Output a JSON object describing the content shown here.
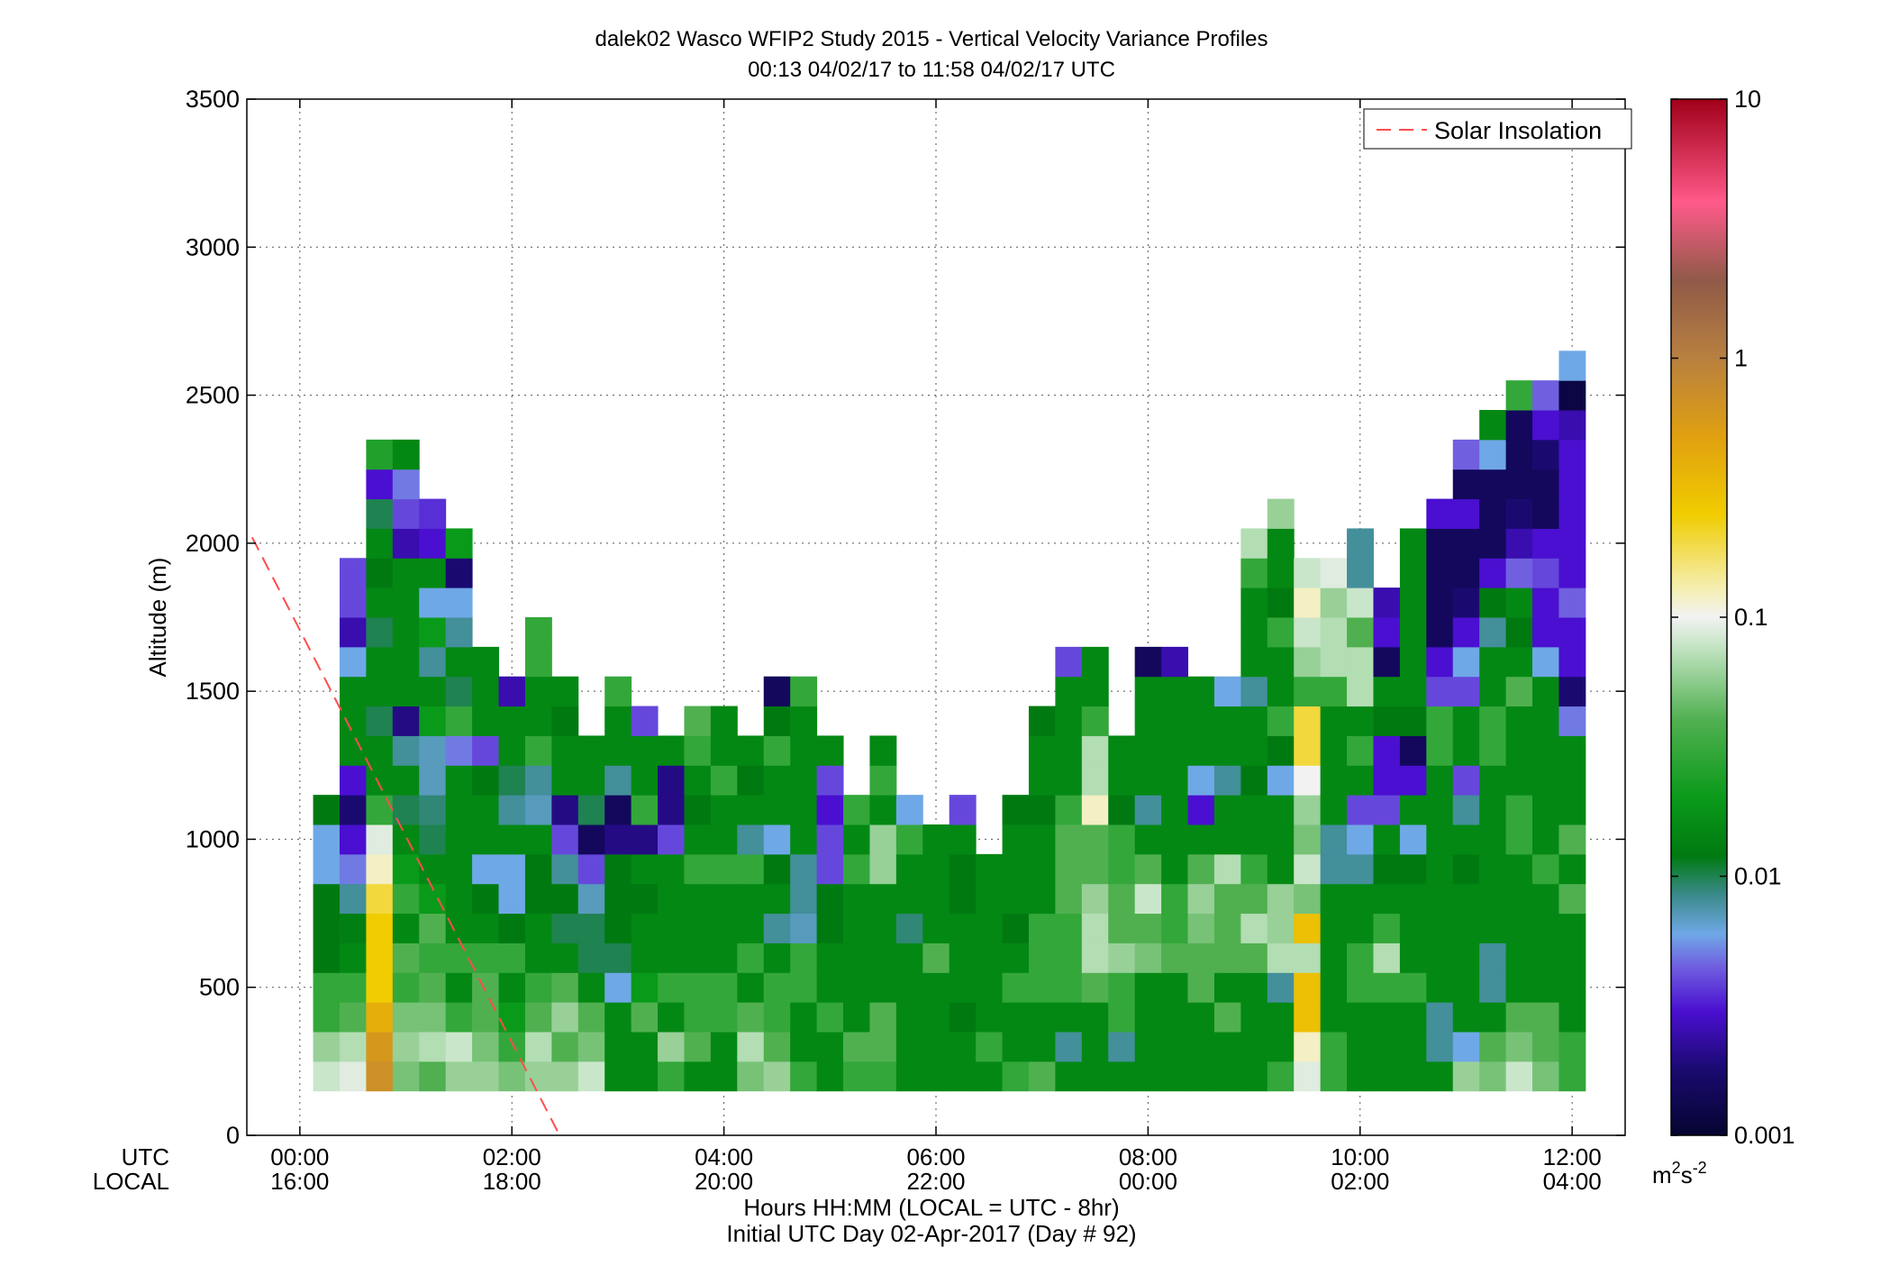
{
  "chart_data": {
    "type": "heatmap",
    "title": "dalek02 Wasco WFIP2 Study 2015 - Vertical Velocity Variance Profiles",
    "subtitle": "00:13 04/02/17 to 11:58 04/02/17  UTC",
    "ylabel": "Altitude (m)",
    "xlabel": "Hours HH:MM  (LOCAL = UTC - 8hr)",
    "xlabel2": "Initial UTC Day 02-Apr-2017 (Day # 92)",
    "utc_row_label": "UTC",
    "local_row_label": "LOCAL",
    "xlim": [
      -0.5,
      12.5
    ],
    "ylim": [
      0,
      3500
    ],
    "grid": true,
    "x_ticks": [
      {
        "x": 0,
        "utc": "00:00",
        "local": "16:00"
      },
      {
        "x": 2,
        "utc": "02:00",
        "local": "18:00"
      },
      {
        "x": 4,
        "utc": "04:00",
        "local": "20:00"
      },
      {
        "x": 6,
        "utc": "06:00",
        "local": "22:00"
      },
      {
        "x": 8,
        "utc": "08:00",
        "local": "00:00"
      },
      {
        "x": 10,
        "utc": "10:00",
        "local": "02:00"
      },
      {
        "x": 12,
        "utc": "12:00",
        "local": "04:00"
      }
    ],
    "y_ticks": [
      "0",
      "500",
      "1000",
      "1500",
      "2000",
      "2500",
      "3000",
      "3500"
    ],
    "legend": {
      "position": "top-right",
      "entries": [
        {
          "label": "Solar Insolation",
          "color": "#ff4d4d",
          "style": "dashed"
        }
      ]
    },
    "solar_insolation_line": {
      "x": [
        -0.45,
        2.45
      ],
      "y": [
        2020,
        0
      ]
    },
    "colorbar": {
      "unit": "m",
      "unit_sup1": "2",
      "unit_mid": "s",
      "unit_sup2": "-2",
      "scale": "log",
      "range": [
        0.001,
        10
      ],
      "tick_labels": [
        "0.001",
        "0.01",
        "0.1",
        "1",
        "10"
      ],
      "tick_values": [
        0.001,
        0.01,
        0.1,
        1,
        10
      ],
      "stops": [
        {
          "v": 0.001,
          "c": "#050530"
        },
        {
          "v": 0.0018,
          "c": "#1a0a70"
        },
        {
          "v": 0.003,
          "c": "#4a0fd0"
        },
        {
          "v": 0.0045,
          "c": "#7060e0"
        },
        {
          "v": 0.006,
          "c": "#6fa8e6"
        },
        {
          "v": 0.0085,
          "c": "#3a8a8a"
        },
        {
          "v": 0.012,
          "c": "#007a10"
        },
        {
          "v": 0.02,
          "c": "#0a9a1a"
        },
        {
          "v": 0.04,
          "c": "#50b050"
        },
        {
          "v": 0.075,
          "c": "#bfe2bf"
        },
        {
          "v": 0.1,
          "c": "#f2f2f2"
        },
        {
          "v": 0.13,
          "c": "#f5eeb0"
        },
        {
          "v": 0.25,
          "c": "#f0cc00"
        },
        {
          "v": 0.5,
          "c": "#e0a010"
        },
        {
          "v": 1.0,
          "c": "#b88040"
        },
        {
          "v": 2.0,
          "c": "#905a48"
        },
        {
          "v": 4.0,
          "c": "#ff5a8a"
        },
        {
          "v": 10.0,
          "c": "#a00018"
        }
      ]
    },
    "grid_spec": {
      "x_start": 0.25,
      "x_step": 0.25,
      "y_start": 200,
      "y_step": 100
    },
    "cells": {
      "0.25": [
        0.08,
        0.06,
        0.03,
        0.03,
        0.012,
        0.012,
        0.012,
        0.006,
        0.006,
        0.012
      ],
      "0.5": [
        0.09,
        0.07,
        0.04,
        0.03,
        0.015,
        0.013,
        0.008,
        0.005,
        0.003,
        0.0018,
        0.003,
        0.015,
        0.015,
        0.015,
        0.006,
        0.0025,
        0.004,
        0.004
      ],
      "0.75": [
        0.7,
        0.6,
        0.4,
        0.25,
        0.25,
        0.25,
        0.2,
        0.12,
        0.09,
        0.03,
        0.015,
        0.015,
        0.01,
        0.015,
        0.015,
        0.01,
        0.015,
        0.012,
        0.015,
        0.01,
        0.003,
        0.025
      ],
      "1.0": [
        0.05,
        0.06,
        0.05,
        0.03,
        0.04,
        0.015,
        0.03,
        0.02,
        0.015,
        0.01,
        0.015,
        0.008,
        0.002,
        0.015,
        0.015,
        0.015,
        0.015,
        0.015,
        0.0025,
        0.004,
        0.005,
        0.015
      ],
      "1.25": [
        0.04,
        0.07,
        0.05,
        0.04,
        0.03,
        0.04,
        0.02,
        0.015,
        0.01,
        0.009,
        0.007,
        0.007,
        0.02,
        0.015,
        0.008,
        0.02,
        0.006,
        0.015,
        0.003,
        0.0035
      ],
      "1.5": [
        0.06,
        0.08,
        0.03,
        0.015,
        0.03,
        0.015,
        0.015,
        0.015,
        0.015,
        0.015,
        0.015,
        0.005,
        0.03,
        0.01,
        0.015,
        0.008,
        0.006,
        0.0018,
        0.02
      ],
      "1.75": [
        0.06,
        0.05,
        0.04,
        0.04,
        0.03,
        0.015,
        0.012,
        0.006,
        0.015,
        0.015,
        0.012,
        0.004,
        0.015,
        0.015,
        0.015
      ],
      "2.0": [
        0.05,
        0.03,
        0.02,
        0.015,
        0.03,
        0.012,
        0.006,
        0.006,
        0.015,
        0.008,
        0.01,
        0.015,
        0.015,
        0.0025
      ],
      "2.25": [
        0.06,
        0.07,
        0.04,
        0.03,
        0.015,
        0.015,
        0.012,
        0.012,
        0.015,
        0.007,
        0.008,
        0.03,
        0.015,
        0.015,
        0.03,
        0.03
      ],
      "2.5": [
        0.06,
        0.04,
        0.06,
        0.04,
        0.015,
        0.01,
        0.012,
        0.008,
        0.004,
        0.002,
        0.015,
        0.015,
        0.012,
        0.015
      ],
      "2.75": [
        0.08,
        0.05,
        0.04,
        0.015,
        0.01,
        0.01,
        0.007,
        0.004,
        0.0015,
        0.01,
        0.015,
        0.015
      ],
      "3.0": [
        0.015,
        0.015,
        0.015,
        0.006,
        0.01,
        0.012,
        0.012,
        0.012,
        0.002,
        0.0015,
        0.008,
        0.015,
        0.015,
        0.03
      ],
      "3.25": [
        0.015,
        0.015,
        0.04,
        0.02,
        0.015,
        0.015,
        0.012,
        0.015,
        0.002,
        0.03,
        0.015,
        0.015,
        0.004
      ],
      "3.5": [
        0.03,
        0.06,
        0.015,
        0.03,
        0.015,
        0.015,
        0.015,
        0.015,
        0.004,
        0.002,
        0.002,
        0.015
      ],
      "3.75": [
        0.015,
        0.04,
        0.03,
        0.03,
        0.015,
        0.015,
        0.015,
        0.03,
        0.015,
        0.012,
        0.015,
        0.03,
        0.04
      ],
      "4.0": [
        0.015,
        0.015,
        0.03,
        0.03,
        0.015,
        0.015,
        0.015,
        0.03,
        0.015,
        0.015,
        0.03,
        0.015,
        0.015
      ],
      "4.25": [
        0.05,
        0.07,
        0.04,
        0.015,
        0.03,
        0.015,
        0.015,
        0.03,
        0.008,
        0.015,
        0.012,
        0.015
      ],
      "4.5": [
        0.06,
        0.04,
        0.03,
        0.03,
        0.015,
        0.008,
        0.015,
        0.012,
        0.006,
        0.015,
        0.015,
        0.03,
        0.012,
        0.0015
      ],
      "4.75": [
        0.03,
        0.015,
        0.015,
        0.03,
        0.03,
        0.007,
        0.008,
        0.008,
        0.015,
        0.015,
        0.015,
        0.015,
        0.015,
        0.03
      ],
      "5.0": [
        0.015,
        0.015,
        0.03,
        0.015,
        0.015,
        0.012,
        0.012,
        0.004,
        0.004,
        0.003,
        0.004,
        0.015
      ],
      "5.25": [
        0.03,
        0.04,
        0.015,
        0.015,
        0.015,
        0.015,
        0.015,
        0.03,
        0.015,
        0.03
      ],
      "5.5": [
        0.03,
        0.04,
        0.04,
        0.015,
        0.015,
        0.015,
        0.015,
        0.06,
        0.06,
        0.015,
        0.03,
        0.015
      ],
      "5.75": [
        0.015,
        0.015,
        0.015,
        0.015,
        0.015,
        0.009,
        0.015,
        0.015,
        0.03,
        0.006
      ],
      "6.0": [
        0.015,
        0.015,
        0.015,
        0.015,
        0.04,
        0.015,
        0.015,
        0.015,
        0.015
      ],
      "6.25": [
        0.015,
        0.015,
        0.012,
        0.015,
        0.015,
        0.015,
        0.012,
        0.012,
        0.015,
        0.004
      ],
      "6.5": [
        0.015,
        0.03,
        0.015,
        0.015,
        0.015,
        0.015,
        0.015,
        0.015
      ],
      "6.75": [
        0.03,
        0.015,
        0.015,
        0.03,
        0.015,
        0.012,
        0.015,
        0.015,
        0.015,
        0.012
      ],
      "7.0": [
        0.04,
        0.015,
        0.015,
        0.03,
        0.03,
        0.03,
        0.015,
        0.015,
        0.015,
        0.012,
        0.015,
        0.015,
        0.012
      ],
      "7.25": [
        0.015,
        0.008,
        0.015,
        0.03,
        0.03,
        0.03,
        0.04,
        0.04,
        0.04,
        0.03,
        0.015,
        0.015,
        0.015,
        0.015,
        0.004
      ],
      "7.5": [
        0.015,
        0.015,
        0.015,
        0.04,
        0.07,
        0.07,
        0.06,
        0.04,
        0.04,
        0.12,
        0.07,
        0.07,
        0.03,
        0.015,
        0.015
      ],
      "7.75": [
        0.015,
        0.008,
        0.03,
        0.03,
        0.06,
        0.04,
        0.04,
        0.03,
        0.03,
        0.012,
        0.015,
        0.015
      ],
      "8.0": [
        0.015,
        0.015,
        0.015,
        0.015,
        0.05,
        0.04,
        0.08,
        0.04,
        0.015,
        0.008,
        0.015,
        0.015,
        0.015,
        0.015,
        0.0015
      ],
      "8.25": [
        0.015,
        0.015,
        0.015,
        0.015,
        0.04,
        0.03,
        0.03,
        0.015,
        0.015,
        0.015,
        0.015,
        0.015,
        0.015,
        0.015,
        0.0025
      ],
      "8.5": [
        0.015,
        0.015,
        0.015,
        0.04,
        0.04,
        0.05,
        0.06,
        0.04,
        0.015,
        0.003,
        0.006,
        0.015,
        0.015,
        0.015
      ],
      "8.75": [
        0.015,
        0.015,
        0.04,
        0.015,
        0.04,
        0.04,
        0.04,
        0.07,
        0.015,
        0.015,
        0.008,
        0.015,
        0.015,
        0.006
      ],
      "9.0": [
        0.015,
        0.015,
        0.015,
        0.015,
        0.04,
        0.07,
        0.04,
        0.03,
        0.015,
        0.015,
        0.012,
        0.015,
        0.015,
        0.008,
        0.015,
        0.015,
        0.015,
        0.03,
        0.07
      ],
      "9.25": [
        0.03,
        0.015,
        0.015,
        0.008,
        0.07,
        0.06,
        0.06,
        0.015,
        0.015,
        0.015,
        0.006,
        0.012,
        0.03,
        0.015,
        0.015,
        0.03,
        0.012,
        0.015,
        0.015,
        0.06
      ],
      "9.5": [
        0.09,
        0.12,
        0.3,
        0.3,
        0.07,
        0.3,
        0.05,
        0.08,
        0.05,
        0.06,
        0.1,
        0.2,
        0.2,
        0.03,
        0.06,
        0.08,
        0.12,
        0.08
      ],
      "9.75": [
        0.03,
        0.03,
        0.015,
        0.015,
        0.015,
        0.015,
        0.015,
        0.008,
        0.008,
        0.015,
        0.015,
        0.015,
        0.015,
        0.03,
        0.07,
        0.07,
        0.06,
        0.09
      ],
      "10.0": [
        0.015,
        0.015,
        0.015,
        0.03,
        0.03,
        0.015,
        0.015,
        0.008,
        0.006,
        0.004,
        0.015,
        0.03,
        0.015,
        0.07,
        0.07,
        0.04,
        0.08,
        0.008,
        0.008
      ],
      "10.25": [
        0.015,
        0.015,
        0.015,
        0.03,
        0.07,
        0.03,
        0.015,
        0.012,
        0.015,
        0.004,
        0.003,
        0.003,
        0.012,
        0.015,
        0.0015,
        0.003,
        0.0025
      ],
      "10.5": [
        0.015,
        0.015,
        0.015,
        0.03,
        0.015,
        0.015,
        0.015,
        0.012,
        0.006,
        0.015,
        0.003,
        0.0015,
        0.012,
        0.015,
        0.015,
        0.015,
        0.015,
        0.015,
        0.015
      ],
      "10.75": [
        0.015,
        0.008,
        0.008,
        0.015,
        0.015,
        0.015,
        0.015,
        0.015,
        0.015,
        0.015,
        0.015,
        0.03,
        0.03,
        0.004,
        0.003,
        0.0015,
        0.0015,
        0.0015,
        0.0015,
        0.003
      ],
      "11.0": [
        0.06,
        0.006,
        0.015,
        0.015,
        0.015,
        0.015,
        0.015,
        0.012,
        0.015,
        0.008,
        0.004,
        0.015,
        0.015,
        0.004,
        0.006,
        0.003,
        0.0018,
        0.0015,
        0.0015,
        0.003,
        0.0015,
        0.0045
      ],
      "11.25": [
        0.05,
        0.04,
        0.015,
        0.008,
        0.008,
        0.015,
        0.015,
        0.015,
        0.015,
        0.015,
        0.015,
        0.03,
        0.03,
        0.015,
        0.015,
        0.008,
        0.012,
        0.003,
        0.0015,
        0.0015,
        0.0015,
        0.006,
        0.015
      ],
      "11.5": [
        0.08,
        0.05,
        0.04,
        0.015,
        0.015,
        0.015,
        0.015,
        0.015,
        0.03,
        0.03,
        0.015,
        0.015,
        0.015,
        0.04,
        0.015,
        0.012,
        0.015,
        0.0045,
        0.0025,
        0.0018,
        0.0015,
        0.0015,
        0.0015,
        0.03
      ],
      "11.75": [
        0.05,
        0.04,
        0.04,
        0.015,
        0.015,
        0.015,
        0.015,
        0.03,
        0.015,
        0.015,
        0.015,
        0.015,
        0.015,
        0.015,
        0.006,
        0.003,
        0.003,
        0.004,
        0.003,
        0.0015,
        0.0015,
        0.0018,
        0.003,
        0.0045
      ],
      "12.0": [
        0.03,
        0.03,
        0.015,
        0.015,
        0.015,
        0.015,
        0.04,
        0.015,
        0.04,
        0.015,
        0.015,
        0.015,
        0.005,
        0.0018,
        0.003,
        0.003,
        0.0045,
        0.003,
        0.003,
        0.003,
        0.003,
        0.003,
        0.0025,
        0.0012,
        0.006
      ]
    }
  }
}
